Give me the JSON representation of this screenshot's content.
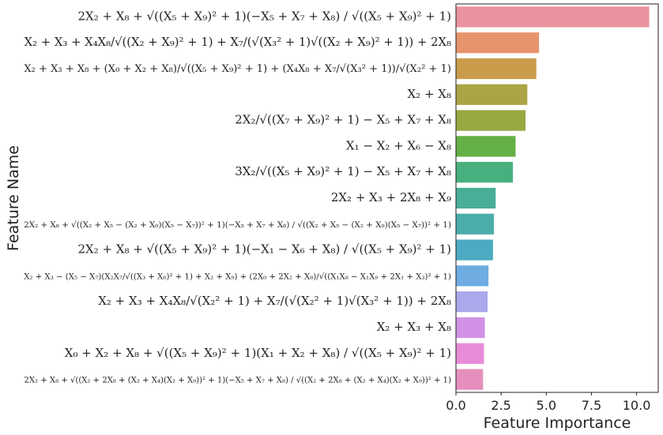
{
  "chart_data": {
    "type": "bar",
    "orientation": "horizontal",
    "xlabel": "Feature Importance",
    "ylabel": "Feature Name",
    "xlim": [
      0,
      11.2
    ],
    "xticks": [
      "0.0",
      "2.5",
      "5.0",
      "7.5",
      "10.0"
    ],
    "xtick_values": [
      0,
      2.5,
      5.0,
      7.5,
      10.0
    ],
    "grid": false,
    "legend": "none",
    "categories": [
      "2X₂ + X₈ + √((X₅ + X₉)² + 1)(−X₅ + X₇ + X₈) / √((X₅ + X₉)² + 1)",
      "X₂ + X₃ + X₄X₈/√((X₂ + X₉)² + 1) + X₇/(√(X₃² + 1)√((X₂ + X₉)² + 1)) + 2X₈",
      "X₂ + X₃ + X₈ + (X₀ + X₂ + X₈)/√((X₅ + X₉)² + 1) + (X₄X₈ + X₇/√(X₃² + 1))/√(X₂² + 1)",
      "X₂ + X₈",
      "2X₂/√((X₇ + X₉)² + 1) − X₅ + X₇ + X₈",
      "X₁ − X₂ + X₆ − X₈",
      "3X₂/√((X₅ + X₉)² + 1) − X₅ + X₇ + X₈",
      "2X₂ + X₃ + 2X₈ + X₉",
      "2X₂ + X₈ + √((X₂ + X₅ − (X₂ + X₉)(X₅ − X₇))² + 1)(−X₅ + X₇ + X₈) / √((X₂ + X₅ − (X₂ + X₉)(X₅ − X₇))² + 1)",
      "2X₂ + X₈ + √((X₅ + X₉)² + 1)(−X₁ − X₆ + X₈) / √((X₅ + X₉)² + 1)",
      "X₂ + X₃ − (X₅ − X₇)(X₂X₇/√((X₃ + X₆)² + 1) + X₂ + X₉) + (2X₀ + 2X₂ + X₈)/√((X₁X₈ − X₁X₉ + 2X₁ + X₃)² + 1)",
      "X₂ + X₃ + X₄X₈/√(X₂² + 1) + X₇/(√(X₂² + 1)√(X₃² + 1)) + 2X₈",
      "X₂ + X₃ + X₈",
      "X₀ + X₂ + X₈ + √((X₅ + X₉)² + 1)(X₁ + X₂ + X₈) / √((X₅ + X₉)² + 1)",
      "2X₂ + X₈ + √((X₂ + 2X₈ + (X₂ + X₄)(X₂ + X₉))² + 1)(−X₅ + X₇ + X₈) / √((X₂ + 2X₈ + (X₂ + X₄)(X₂ + X₉))² + 1)"
    ],
    "values": [
      10.7,
      4.6,
      4.45,
      3.95,
      3.85,
      3.3,
      3.15,
      2.2,
      2.1,
      2.05,
      1.8,
      1.75,
      1.6,
      1.55,
      1.5
    ],
    "colors": [
      "#ea93a0",
      "#e7946c",
      "#c99b4a",
      "#aba446",
      "#98a842",
      "#65b045",
      "#48b07e",
      "#49ae97",
      "#4aadaa",
      "#4cabc2",
      "#6eace2",
      "#a9a9ec",
      "#d192e6",
      "#e88bd9",
      "#e68fbd"
    ]
  }
}
